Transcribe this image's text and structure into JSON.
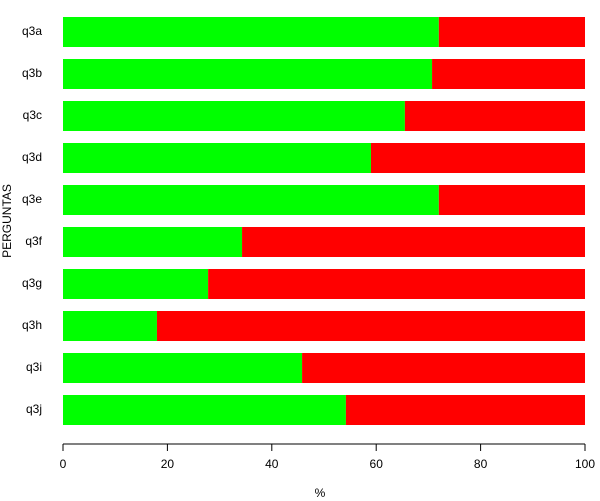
{
  "chart_data": {
    "type": "stacked-barh",
    "categories": [
      "q3a",
      "q3b",
      "q3c",
      "q3d",
      "q3e",
      "q3f",
      "q3g",
      "q3h",
      "q3i",
      "q3j"
    ],
    "series": [
      {
        "color": "#00ff00",
        "values": [
          72.0,
          70.7,
          65.5,
          59.0,
          72.0,
          34.3,
          27.8,
          18.0,
          45.8,
          54.2
        ]
      },
      {
        "color": "#ff0000",
        "values": [
          28.0,
          29.3,
          34.5,
          41.0,
          28.0,
          65.7,
          72.2,
          82.0,
          54.2,
          45.8
        ]
      }
    ],
    "xlabel": "%",
    "ylabel": "PERGUNTAS",
    "xlim": [
      0,
      100
    ],
    "xticks": [
      0,
      20,
      40,
      60,
      80,
      100
    ]
  }
}
